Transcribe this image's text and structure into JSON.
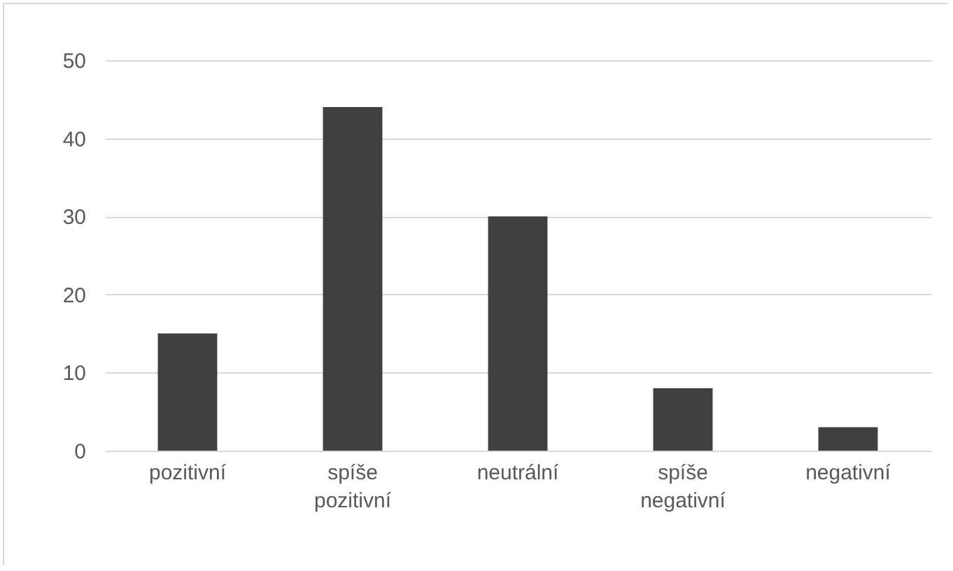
{
  "chart_data": {
    "type": "bar",
    "categories": [
      "pozitivní",
      "spíše pozitivní",
      "neutrální",
      "spíše negativní",
      "negativní"
    ],
    "values": [
      15,
      44,
      30,
      8,
      3
    ],
    "color": "#404040",
    "ylim": [
      0,
      50
    ],
    "yticks": [
      0,
      10,
      20,
      30,
      40,
      50
    ],
    "grid": "y"
  }
}
